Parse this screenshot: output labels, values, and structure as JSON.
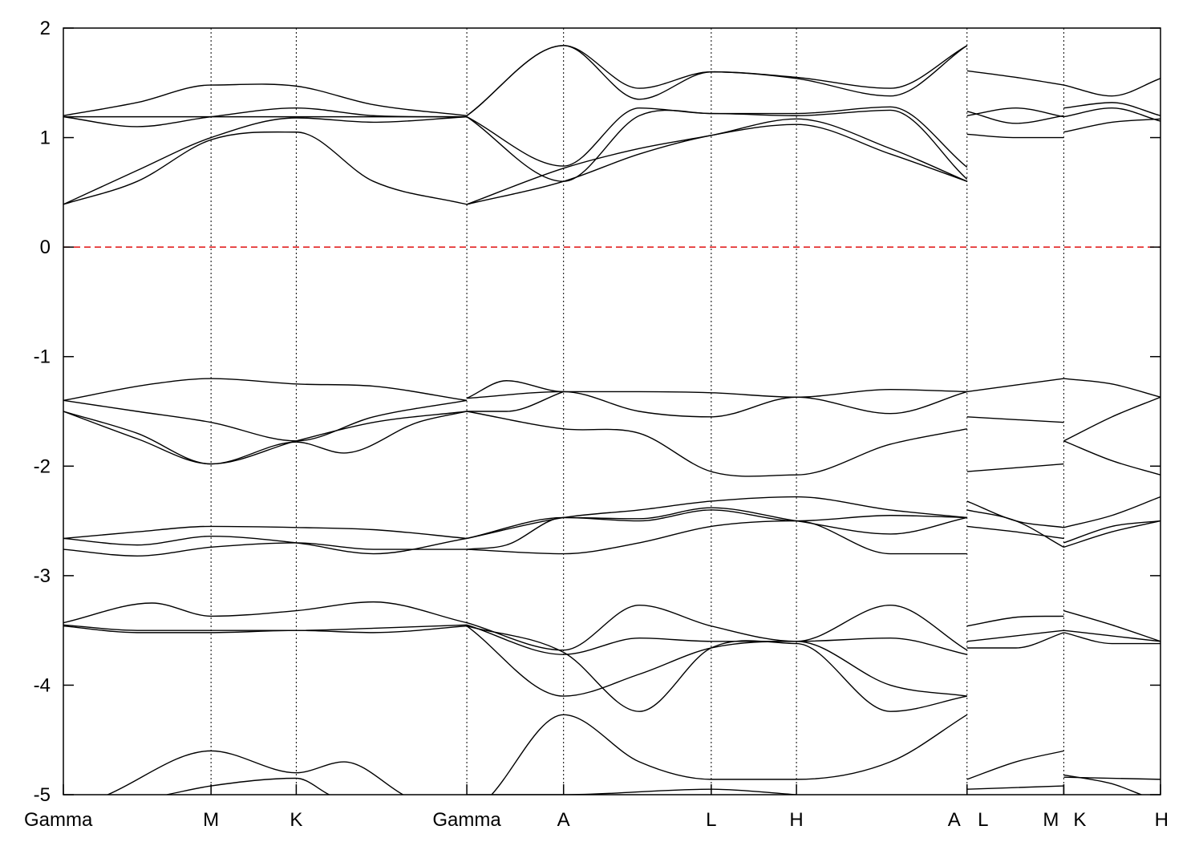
{
  "chart_data": {
    "type": "line",
    "title": "",
    "xlabel": "",
    "ylabel": "",
    "ylim": [
      -5,
      2
    ],
    "y_ticks": [
      -5,
      -4,
      -3,
      -2,
      -1,
      0,
      1,
      2
    ],
    "grid": "vertical dotted lines at high-symmetry points",
    "fermi_level": 0,
    "colors": {
      "bands": "#000000",
      "fermi": "#e01010",
      "frame": "#000000"
    },
    "kpoints": [
      {
        "label": "Gamma",
        "x": 0
      },
      {
        "label": "M",
        "x": 1.0
      },
      {
        "label": "K",
        "x": 1.577
      },
      {
        "label": "Gamma",
        "x": 2.732
      },
      {
        "label": "A",
        "x": 3.387
      },
      {
        "label": "L",
        "x": 4.387
      },
      {
        "label": "H",
        "x": 4.964
      },
      {
        "label": "A",
        "x": 6.119
      },
      {
        "label": "L",
        "x": 6.119
      },
      {
        "label": "M",
        "x": 6.774
      },
      {
        "label": "K",
        "x": 6.774
      },
      {
        "label": "H",
        "x": 7.429
      }
    ],
    "series": [
      {
        "x": [
          0,
          0.5,
          1.0,
          1.577,
          2.1,
          2.732
        ],
        "y": [
          0.39,
          0.6,
          0.98,
          1.05,
          0.6,
          0.39
        ]
      },
      {
        "x": [
          0,
          0.5,
          1.0,
          1.577,
          2.1,
          2.732
        ],
        "y": [
          0.39,
          0.7,
          1.0,
          1.18,
          1.14,
          1.19
        ]
      },
      {
        "x": [
          0,
          0.5,
          1.0,
          1.577,
          2.1,
          2.732
        ],
        "y": [
          1.19,
          1.1,
          1.19,
          1.27,
          1.2,
          1.19
        ]
      },
      {
        "x": [
          0,
          0.5,
          1.0,
          1.577,
          2.1,
          2.732
        ],
        "y": [
          1.2,
          1.32,
          1.48,
          1.47,
          1.3,
          1.2
        ]
      },
      {
        "x": [
          0,
          1.0,
          1.577,
          2.732
        ],
        "y": [
          1.19,
          1.19,
          1.19,
          1.19
        ]
      },
      {
        "x": [
          0,
          0.6,
          1.0,
          1.577,
          2.1,
          2.732
        ],
        "y": [
          -1.4,
          -1.25,
          -1.2,
          -1.25,
          -1.27,
          -1.4
        ]
      },
      {
        "x": [
          0,
          0.5,
          1.0,
          1.577,
          2.1,
          2.732
        ],
        "y": [
          -1.4,
          -1.5,
          -1.6,
          -1.77,
          -1.55,
          -1.4
        ]
      },
      {
        "x": [
          0,
          0.5,
          1.0,
          1.577,
          2.1,
          2.732
        ],
        "y": [
          -1.5,
          -1.75,
          -1.98,
          -1.77,
          -1.6,
          -1.5
        ]
      },
      {
        "x": [
          0,
          0.5,
          1.0,
          1.577,
          1.9,
          2.4,
          2.732
        ],
        "y": [
          -1.5,
          -1.7,
          -1.98,
          -1.78,
          -1.88,
          -1.6,
          -1.5
        ]
      },
      {
        "x": [
          0,
          0.5,
          1.0,
          1.577,
          2.1,
          2.732
        ],
        "y": [
          -2.66,
          -2.6,
          -2.55,
          -2.56,
          -2.58,
          -2.66
        ]
      },
      {
        "x": [
          0,
          0.5,
          1.0,
          1.577,
          2.1,
          2.732
        ],
        "y": [
          -2.66,
          -2.72,
          -2.64,
          -2.7,
          -2.8,
          -2.66
        ]
      },
      {
        "x": [
          0,
          0.5,
          1.0,
          1.577,
          2.1,
          2.732
        ],
        "y": [
          -2.76,
          -2.82,
          -2.74,
          -2.7,
          -2.76,
          -2.76
        ]
      },
      {
        "x": [
          0,
          0.6,
          1.0,
          1.577,
          2.1,
          2.732
        ],
        "y": [
          -3.43,
          -3.25,
          -3.37,
          -3.32,
          -3.24,
          -3.43
        ]
      },
      {
        "x": [
          0,
          0.5,
          1.0,
          1.577,
          2.1,
          2.732
        ],
        "y": [
          -3.45,
          -3.5,
          -3.5,
          -3.5,
          -3.48,
          -3.45
        ]
      },
      {
        "x": [
          0,
          0.5,
          1.0,
          1.577,
          2.1,
          2.732
        ],
        "y": [
          -3.46,
          -3.52,
          -3.52,
          -3.5,
          -3.52,
          -3.46
        ]
      },
      {
        "x": [
          0.3,
          1.0,
          1.577,
          1.9,
          2.3
        ],
        "y": [
          -5.0,
          -4.6,
          -4.8,
          -4.7,
          -5.0
        ]
      },
      {
        "x": [
          0.7,
          1.0,
          1.577,
          1.8
        ],
        "y": [
          -5.0,
          -4.92,
          -4.85,
          -5.0
        ]
      },
      {
        "x": [
          2.732,
          3.387,
          3.9,
          4.387,
          4.964,
          5.6,
          6.119
        ],
        "y": [
          1.2,
          1.84,
          1.45,
          1.6,
          1.55,
          1.45,
          1.84
        ]
      },
      {
        "x": [
          2.732,
          3.387,
          3.9,
          4.387,
          4.964,
          5.6,
          6.119
        ],
        "y": [
          1.2,
          1.84,
          1.35,
          1.6,
          1.54,
          1.38,
          1.84
        ]
      },
      {
        "x": [
          2.732,
          3.387,
          3.9,
          4.387,
          4.964,
          5.6,
          6.119
        ],
        "y": [
          1.19,
          0.74,
          1.27,
          1.22,
          1.22,
          1.28,
          0.73
        ]
      },
      {
        "x": [
          2.732,
          3.387,
          3.9,
          4.387,
          4.964,
          5.6,
          6.119
        ],
        "y": [
          1.19,
          0.6,
          1.2,
          1.22,
          1.2,
          1.25,
          0.62
        ]
      },
      {
        "x": [
          2.732,
          3.387,
          3.9,
          4.387,
          4.964,
          5.6,
          6.119
        ],
        "y": [
          0.39,
          0.72,
          0.9,
          1.02,
          1.17,
          0.9,
          0.6
        ]
      },
      {
        "x": [
          2.732,
          3.387,
          3.9,
          4.387,
          4.964,
          5.6,
          6.119
        ],
        "y": [
          0.39,
          0.6,
          0.85,
          1.02,
          1.12,
          0.85,
          0.6
        ]
      },
      {
        "x": [
          2.732,
          3.0,
          3.387,
          3.9,
          4.387,
          4.964,
          5.6,
          6.119
        ],
        "y": [
          -1.38,
          -1.22,
          -1.32,
          -1.32,
          -1.33,
          -1.37,
          -1.3,
          -1.32
        ]
      },
      {
        "x": [
          2.732,
          3.387,
          3.9,
          4.387,
          4.964,
          5.6,
          6.119
        ],
        "y": [
          -1.38,
          -1.32,
          -1.5,
          -1.55,
          -1.37,
          -1.52,
          -1.32
        ]
      },
      {
        "x": [
          2.732,
          3.387,
          3.9,
          4.387,
          4.964,
          5.6,
          6.119
        ],
        "y": [
          -1.5,
          -1.66,
          -1.7,
          -2.05,
          -2.08,
          -1.8,
          -1.66
        ]
      },
      {
        "x": [
          2.732,
          3.0,
          3.387
        ],
        "y": [
          -1.5,
          -1.5,
          -1.32
        ]
      },
      {
        "x": [
          2.732,
          3.387,
          3.9,
          4.387,
          4.964,
          5.6,
          6.119
        ],
        "y": [
          -2.66,
          -2.47,
          -2.4,
          -2.32,
          -2.28,
          -2.4,
          -2.47
        ]
      },
      {
        "x": [
          2.732,
          3.387,
          3.9,
          4.387,
          4.964,
          5.6,
          6.119
        ],
        "y": [
          -2.66,
          -2.47,
          -2.5,
          -2.4,
          -2.5,
          -2.45,
          -2.47
        ]
      },
      {
        "x": [
          2.732,
          3.0,
          3.387,
          3.9,
          4.387,
          4.964,
          5.6,
          6.119
        ],
        "y": [
          -2.76,
          -2.72,
          -2.47,
          -2.48,
          -2.38,
          -2.5,
          -2.62,
          -2.47
        ]
      },
      {
        "x": [
          2.732,
          3.387,
          3.9,
          4.387,
          4.964,
          5.6,
          6.119
        ],
        "y": [
          -2.76,
          -2.8,
          -2.7,
          -2.55,
          -2.5,
          -2.8,
          -2.8
        ]
      },
      {
        "x": [
          2.732,
          3.387,
          3.9,
          4.387,
          4.964,
          5.6,
          6.119
        ],
        "y": [
          -3.43,
          -3.68,
          -3.27,
          -3.46,
          -3.6,
          -3.27,
          -3.68
        ]
      },
      {
        "x": [
          2.732,
          3.387,
          3.9,
          4.387,
          4.964,
          5.6,
          6.119
        ],
        "y": [
          -3.45,
          -3.72,
          -3.57,
          -3.6,
          -3.6,
          -3.57,
          -3.72
        ]
      },
      {
        "x": [
          2.732,
          3.387,
          3.9,
          4.387,
          4.964,
          5.6,
          6.119
        ],
        "y": [
          -3.46,
          -4.1,
          -3.9,
          -3.66,
          -3.6,
          -4.0,
          -4.1
        ]
      },
      {
        "x": [
          2.732,
          3.387,
          3.9,
          4.387,
          4.964,
          5.6,
          6.119
        ],
        "y": [
          -3.46,
          -3.7,
          -4.24,
          -3.66,
          -3.62,
          -4.24,
          -4.1
        ]
      },
      {
        "x": [
          2.9,
          3.387,
          3.9,
          4.387,
          4.964,
          5.6,
          6.119
        ],
        "y": [
          -5.0,
          -4.27,
          -4.7,
          -4.86,
          -4.86,
          -4.7,
          -4.27
        ]
      },
      {
        "x": [
          2.732,
          3.387,
          4.387,
          4.964
        ],
        "y": [
          -5.0,
          -5.0,
          -4.95,
          -5.0
        ]
      },
      {
        "x": [
          6.119,
          6.45,
          6.774
        ],
        "y": [
          1.61,
          1.55,
          1.48
        ]
      },
      {
        "x": [
          6.119,
          6.45,
          6.774
        ],
        "y": [
          1.24,
          1.13,
          1.2
        ]
      },
      {
        "x": [
          6.119,
          6.45,
          6.774
        ],
        "y": [
          1.2,
          1.27,
          1.19
        ]
      },
      {
        "x": [
          6.119,
          6.45,
          6.774
        ],
        "y": [
          1.03,
          1.0,
          1.0
        ]
      },
      {
        "x": [
          6.119,
          6.774
        ],
        "y": [
          -1.32,
          -1.2
        ]
      },
      {
        "x": [
          6.119,
          6.774
        ],
        "y": [
          -1.55,
          -1.6
        ]
      },
      {
        "x": [
          6.119,
          6.774
        ],
        "y": [
          -2.05,
          -1.98
        ]
      },
      {
        "x": [
          6.119,
          6.45,
          6.774
        ],
        "y": [
          -2.32,
          -2.5,
          -2.56
        ]
      },
      {
        "x": [
          6.119,
          6.45,
          6.774
        ],
        "y": [
          -2.4,
          -2.5,
          -2.74
        ]
      },
      {
        "x": [
          6.119,
          6.45,
          6.774
        ],
        "y": [
          -2.55,
          -2.6,
          -2.66
        ]
      },
      {
        "x": [
          6.119,
          6.45,
          6.774
        ],
        "y": [
          -3.46,
          -3.38,
          -3.37
        ]
      },
      {
        "x": [
          6.119,
          6.45,
          6.774
        ],
        "y": [
          -3.6,
          -3.55,
          -3.5
        ]
      },
      {
        "x": [
          6.119,
          6.45,
          6.774
        ],
        "y": [
          -3.66,
          -3.66,
          -3.52
        ]
      },
      {
        "x": [
          6.119,
          6.45,
          6.774
        ],
        "y": [
          -4.86,
          -4.7,
          -4.6
        ]
      },
      {
        "x": [
          6.119,
          6.774
        ],
        "y": [
          -4.95,
          -4.92
        ]
      },
      {
        "x": [
          6.774,
          7.1,
          7.429
        ],
        "y": [
          1.48,
          1.38,
          1.54
        ]
      },
      {
        "x": [
          6.774,
          7.1,
          7.429
        ],
        "y": [
          1.27,
          1.32,
          1.2
        ]
      },
      {
        "x": [
          6.774,
          7.1,
          7.429
        ],
        "y": [
          1.19,
          1.27,
          1.15
        ]
      },
      {
        "x": [
          6.774,
          7.1,
          7.429
        ],
        "y": [
          1.05,
          1.14,
          1.17
        ]
      },
      {
        "x": [
          6.774,
          7.1,
          7.429
        ],
        "y": [
          -1.2,
          -1.25,
          -1.37
        ]
      },
      {
        "x": [
          6.774,
          7.1,
          7.429
        ],
        "y": [
          -1.77,
          -1.55,
          -1.37
        ]
      },
      {
        "x": [
          6.774,
          7.1,
          7.429
        ],
        "y": [
          -1.77,
          -1.95,
          -2.08
        ]
      },
      {
        "x": [
          6.774,
          7.1,
          7.429
        ],
        "y": [
          -2.56,
          -2.45,
          -2.28
        ]
      },
      {
        "x": [
          6.774,
          7.1,
          7.429
        ],
        "y": [
          -2.7,
          -2.55,
          -2.5
        ]
      },
      {
        "x": [
          6.774,
          7.1,
          7.429
        ],
        "y": [
          -2.74,
          -2.6,
          -2.5
        ]
      },
      {
        "x": [
          6.774,
          7.1,
          7.429
        ],
        "y": [
          -3.32,
          -3.45,
          -3.6
        ]
      },
      {
        "x": [
          6.774,
          7.1,
          7.429
        ],
        "y": [
          -3.5,
          -3.55,
          -3.6
        ]
      },
      {
        "x": [
          6.774,
          7.1,
          7.429
        ],
        "y": [
          -3.52,
          -3.62,
          -3.62
        ]
      },
      {
        "x": [
          6.774,
          7.429
        ],
        "y": [
          -4.84,
          -4.86
        ]
      },
      {
        "x": [
          6.774,
          7.1,
          7.3
        ],
        "y": [
          -4.82,
          -4.9,
          -5.0
        ]
      }
    ]
  }
}
